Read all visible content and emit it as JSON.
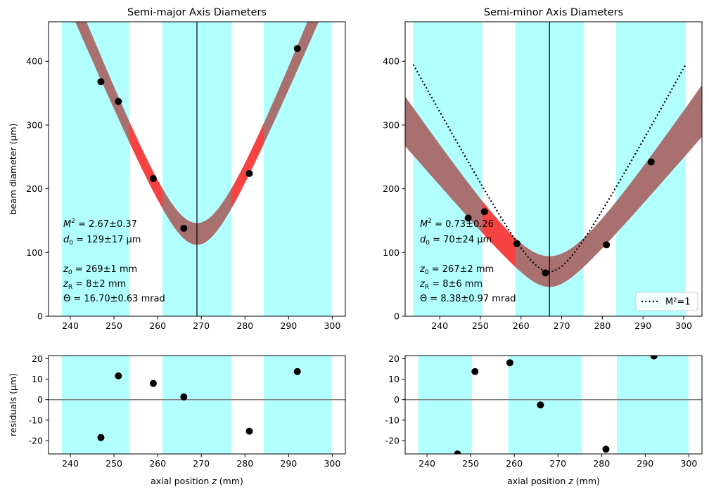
{
  "chart_data": [
    {
      "type": "scatter",
      "panel": "semi-major main",
      "title": "Semi-major Axis Diameters",
      "xlabel": "",
      "ylabel": "beam diameter (µm)",
      "xlim": [
        235,
        303
      ],
      "ylim": [
        0,
        462
      ],
      "xticks": [
        240,
        250,
        260,
        270,
        280,
        290,
        300
      ],
      "yticks": [
        0,
        100,
        200,
        300,
        400
      ],
      "shaded_regions_x": [
        [
          238,
          253.6
        ],
        [
          261.1,
          276.9
        ],
        [
          284.3,
          299.9
        ]
      ],
      "waist_line_x": 269,
      "points": [
        {
          "x": 247,
          "y": 368
        },
        {
          "x": 251,
          "y": 337
        },
        {
          "x": 259,
          "y": 216
        },
        {
          "x": 266,
          "y": 138
        },
        {
          "x": 281,
          "y": 224
        },
        {
          "x": 292,
          "y": 420
        }
      ],
      "fit_band": {
        "z0": 269,
        "d0_low": 112,
        "d0_high": 146,
        "theta_low": 16.07,
        "theta_high": 17.33
      },
      "red_region_x": [
        253.6,
        284.3
      ],
      "annotations": {
        "m2_sym": "M",
        "m2_sup": "2",
        "m2_val": " = 2.67±0.37",
        "d0_sym": "d",
        "d0_sub": "0",
        "d0_val": " = 129±17 µm",
        "z0_sym": "z",
        "z0_sub": "0",
        "z0_val": "  = 269±1 mm",
        "zr_sym": "z",
        "zr_sub": "R",
        "zr_val": "  = 8±2 mm",
        "theta": "Θ  = 16.70±0.63 mrad"
      }
    },
    {
      "type": "scatter",
      "panel": "semi-minor main",
      "title": "Semi-minor Axis Diameters",
      "xlabel": "",
      "ylabel": "",
      "xlim": [
        231.5,
        304.5
      ],
      "ylim": [
        0,
        462
      ],
      "xticks": [
        240,
        250,
        260,
        270,
        280,
        290,
        300
      ],
      "yticks": [
        0,
        100,
        200,
        300,
        400
      ],
      "shaded_regions_x": [
        [
          233.5,
          250.5
        ],
        [
          258.6,
          275.4
        ],
        [
          283.4,
          300.5
        ]
      ],
      "waist_line_x": 267,
      "points": [
        {
          "x": 247,
          "y": 154
        },
        {
          "x": 251,
          "y": 164
        },
        {
          "x": 259,
          "y": 114
        },
        {
          "x": 266,
          "y": 68
        },
        {
          "x": 281,
          "y": 112
        },
        {
          "x": 292,
          "y": 242
        }
      ],
      "fit_band": {
        "z0": 267,
        "d0_low": 46,
        "d0_high": 94,
        "theta_low": 7.41,
        "theta_high": 9.35
      },
      "red_region_x": [
        250.5,
        275.4
      ],
      "m2_1_curve": {
        "d0": 70,
        "theta": 11.6
      },
      "legend": {
        "label": "M²=1",
        "position": "bottom-right"
      },
      "annotations": {
        "m2_sym": "M",
        "m2_sup": "2",
        "m2_val": " = 0.73±0.26",
        "d0_sym": "d",
        "d0_sub": "0",
        "d0_val": " = 70±24 µm",
        "z0_sym": "z",
        "z0_sub": "0",
        "z0_val": "  = 267±2 mm",
        "zr_sym": "z",
        "zr_sub": "R",
        "zr_val": "  = 8±6 mm",
        "theta": "Θ  = 8.38±0.97 mrad"
      }
    },
    {
      "type": "scatter",
      "panel": "semi-major residuals",
      "title": "",
      "xlabel_prefix": "axial position ",
      "xlabel_var": "z",
      "xlabel_suffix": " (mm)",
      "ylabel": "residuals (µm)",
      "xlim": [
        235,
        303
      ],
      "ylim": [
        -26.5,
        21.5
      ],
      "xticks": [
        240,
        250,
        260,
        270,
        280,
        290,
        300
      ],
      "yticks": [
        -20,
        -10,
        0,
        10,
        20
      ],
      "shaded_regions_x": [
        [
          238,
          253.6
        ],
        [
          261.1,
          276.9
        ],
        [
          284.3,
          299.9
        ]
      ],
      "zero_line": 0,
      "points": [
        {
          "x": 247,
          "y": -18.5
        },
        {
          "x": 251,
          "y": 11.6
        },
        {
          "x": 259,
          "y": 7.9
        },
        {
          "x": 266,
          "y": 1.3
        },
        {
          "x": 281,
          "y": -15.4
        },
        {
          "x": 292,
          "y": 13.7
        }
      ]
    },
    {
      "type": "scatter",
      "panel": "semi-minor residuals",
      "title": "",
      "xlabel_prefix": "axial position ",
      "xlabel_var": "z",
      "xlabel_suffix": " (mm)",
      "ylabel": "",
      "xlim": [
        235,
        303
      ],
      "ylim": [
        -26.5,
        21.5
      ],
      "xticks": [
        240,
        250,
        260,
        270,
        280,
        290,
        300
      ],
      "yticks": [
        -20,
        -10,
        0,
        10,
        20
      ],
      "shaded_regions_x": [
        [
          238,
          250.3
        ],
        [
          258.6,
          275.4
        ],
        [
          283.5,
          299.9
        ]
      ],
      "zero_line": 0,
      "points": [
        {
          "x": 247,
          "y": -26.5
        },
        {
          "x": 251,
          "y": 13.7
        },
        {
          "x": 259,
          "y": 18.0
        },
        {
          "x": 266,
          "y": -2.6
        },
        {
          "x": 281,
          "y": -24.2
        },
        {
          "x": 292,
          "y": 21.3
        }
      ]
    }
  ],
  "colors": {
    "shade": "#b2ffff",
    "band": "#a97070",
    "red": "#ff3d3d",
    "points": "#000000",
    "line": "#000000",
    "zero_line": "#808080"
  }
}
